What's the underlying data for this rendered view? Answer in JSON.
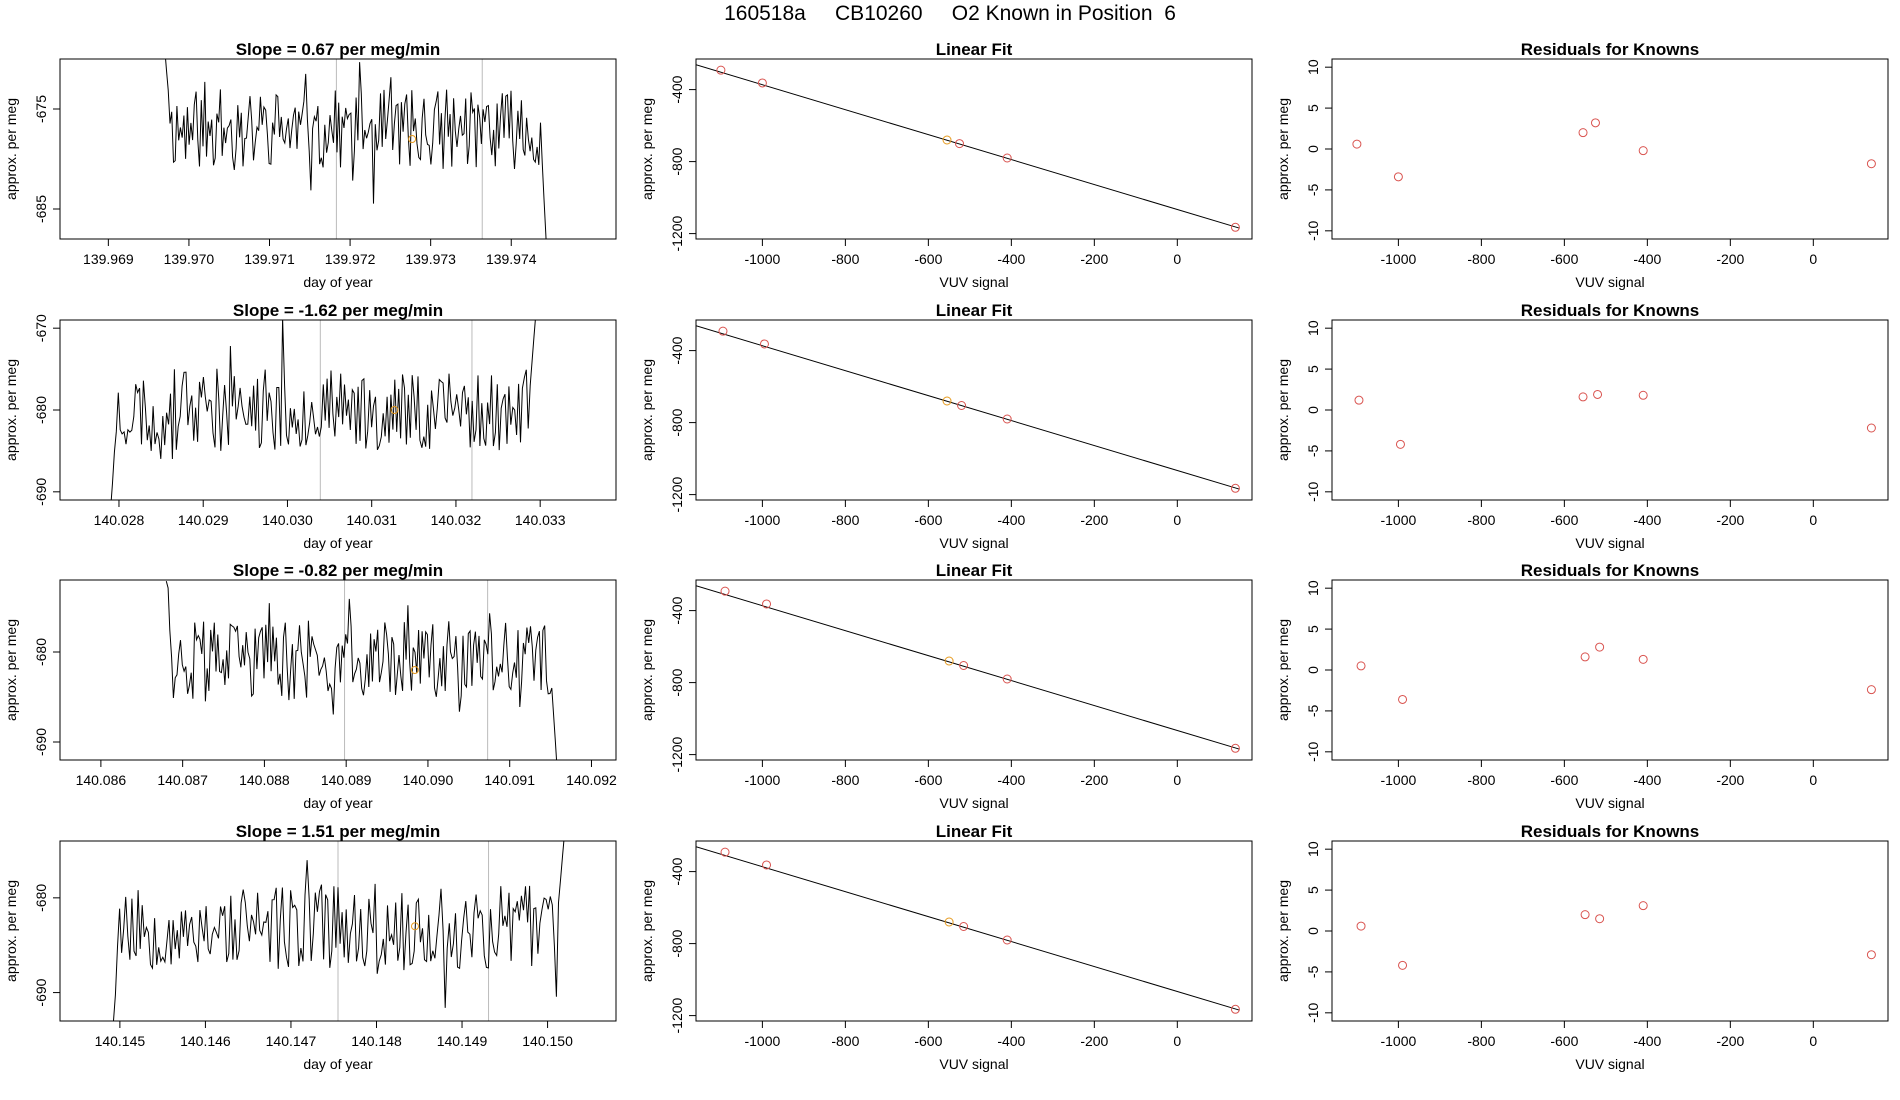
{
  "figure_title": "160518a     CB10260     O2 Known in Position  6",
  "colors": {
    "trace": "#000000",
    "marker_orange": "#e69a1e",
    "marker_red": "#d9534f",
    "vline": "#bbbbbb",
    "fit_line": "#000000"
  },
  "chart_data": [
    {
      "panel": "row1-timeseries",
      "type": "line",
      "title": "Slope =  0.67  per meg/min",
      "xlabel": "day of year",
      "ylabel": "approx. per meg",
      "xlim": [
        139.9684,
        139.9753
      ],
      "ylim": [
        -688,
        -670
      ],
      "xticks": [
        139.969,
        139.97,
        139.971,
        139.972,
        139.973,
        139.974
      ],
      "xtick_labels": [
        "139.969",
        "139.970",
        "139.971",
        "139.972",
        "139.973",
        "139.974"
      ],
      "yticks": [
        -675,
        -685
      ],
      "ytick_labels": [
        "-675",
        "-685"
      ],
      "vlines": [
        139.97183,
        139.97364
      ],
      "marker": {
        "x": 139.97277,
        "y": -678
      },
      "trace_start": 139.9697,
      "trace_end": 139.97445,
      "trace_start_y": -668,
      "trace_end_y": -691,
      "center": -677,
      "amp": 4,
      "seed": 11
    },
    {
      "panel": "row2-timeseries",
      "type": "line",
      "title": "Slope =  -1.62  per meg/min",
      "xlabel": "day of year",
      "ylabel": "approx. per meg",
      "xlim": [
        140.0273,
        140.0339
      ],
      "ylim": [
        -691,
        -669
      ],
      "xticks": [
        140.028,
        140.029,
        140.03,
        140.031,
        140.032,
        140.033
      ],
      "xtick_labels": [
        "140.028",
        "140.029",
        "140.030",
        "140.031",
        "140.032",
        "140.033"
      ],
      "yticks": [
        -670,
        -680,
        -690
      ],
      "ytick_labels": [
        "-670",
        "-680",
        "-690"
      ],
      "vlines": [
        140.03039,
        140.03219
      ],
      "marker": {
        "x": 140.03127,
        "y": -680
      },
      "trace_start": 140.0279,
      "trace_end": 140.03295,
      "trace_start_y": -691,
      "trace_end_y": -668,
      "center": -680,
      "amp": 5,
      "seed": 23
    },
    {
      "panel": "row3-timeseries",
      "type": "line",
      "title": "Slope =  -0.82  per meg/min",
      "xlabel": "day of year",
      "ylabel": "approx. per meg",
      "xlim": [
        140.0855,
        140.0923
      ],
      "ylim": [
        -692,
        -672
      ],
      "xticks": [
        140.086,
        140.087,
        140.088,
        140.089,
        140.09,
        140.091,
        140.092
      ],
      "xtick_labels": [
        "140.086",
        "140.087",
        "140.088",
        "140.089",
        "140.090",
        "140.091",
        "140.092"
      ],
      "yticks": [
        -680,
        -690
      ],
      "ytick_labels": [
        "-680",
        "-690"
      ],
      "vlines": [
        140.08898,
        140.09073
      ],
      "marker": {
        "x": 140.08984,
        "y": -682
      },
      "trace_start": 140.0868,
      "trace_end": 140.09158,
      "trace_start_y": -671,
      "trace_end_y": -693,
      "center": -681,
      "amp": 4.5,
      "seed": 37
    },
    {
      "panel": "row4-timeseries",
      "type": "line",
      "title": "Slope =  1.51  per meg/min",
      "xlabel": "day of year",
      "ylabel": "approx. per meg",
      "xlim": [
        140.1443,
        140.1508
      ],
      "ylim": [
        -693,
        -674
      ],
      "xticks": [
        140.145,
        140.146,
        140.147,
        140.148,
        140.149,
        140.15
      ],
      "xtick_labels": [
        "140.145",
        "140.146",
        "140.147",
        "140.148",
        "140.149",
        "140.150"
      ],
      "yticks": [
        -680,
        -690
      ],
      "ytick_labels": [
        "-680",
        "-690"
      ],
      "vlines": [
        140.14755,
        140.14931
      ],
      "marker": {
        "x": 140.14845,
        "y": -683
      },
      "trace_start": 140.1449,
      "trace_end": 140.1502,
      "trace_start_y": -694,
      "trace_end_y": -673,
      "center": -683,
      "amp": 4.5,
      "seed": 53
    },
    {
      "panel": "row1-linearfit",
      "type": "scatter",
      "title": "Linear Fit",
      "xlabel": "VUV signal",
      "ylabel": "approx. per meg",
      "xlim": [
        -1160,
        180
      ],
      "ylim": [
        -1230,
        -230
      ],
      "xticks": [
        -1000,
        -800,
        -600,
        -400,
        -200,
        0
      ],
      "xtick_labels": [
        "-1000",
        "-800",
        "-600",
        "-400",
        "-200",
        "0"
      ],
      "yticks": [
        -400,
        -800,
        -1200
      ],
      "ytick_labels": [
        "-400",
        "-800",
        "-1200"
      ],
      "fit_line": {
        "x": [
          -1160,
          150
        ],
        "y": [
          -262,
          -1170
        ]
      },
      "points": [
        {
          "x": -1100,
          "y": -292,
          "color": "red"
        },
        {
          "x": -1000,
          "y": -363,
          "color": "red"
        },
        {
          "x": -555,
          "y": -680,
          "color": "orange"
        },
        {
          "x": -525,
          "y": -700,
          "color": "red"
        },
        {
          "x": -410,
          "y": -780,
          "color": "red"
        },
        {
          "x": 140,
          "y": -1165,
          "color": "red"
        }
      ]
    },
    {
      "panel": "row2-linearfit",
      "type": "scatter",
      "title": "Linear Fit",
      "xlabel": "VUV signal",
      "ylabel": "approx. per meg",
      "xlim": [
        -1160,
        180
      ],
      "ylim": [
        -1230,
        -230
      ],
      "xticks": [
        -1000,
        -800,
        -600,
        -400,
        -200,
        0
      ],
      "xtick_labels": [
        "-1000",
        "-800",
        "-600",
        "-400",
        "-200",
        "0"
      ],
      "yticks": [
        -400,
        -800,
        -1200
      ],
      "ytick_labels": [
        "-400",
        "-800",
        "-1200"
      ],
      "fit_line": {
        "x": [
          -1160,
          150
        ],
        "y": [
          -262,
          -1170
        ]
      },
      "points": [
        {
          "x": -1095,
          "y": -292,
          "color": "red"
        },
        {
          "x": -995,
          "y": -363,
          "color": "red"
        },
        {
          "x": -555,
          "y": -680,
          "color": "orange"
        },
        {
          "x": -520,
          "y": -705,
          "color": "red"
        },
        {
          "x": -410,
          "y": -780,
          "color": "red"
        },
        {
          "x": 140,
          "y": -1165,
          "color": "red"
        }
      ]
    },
    {
      "panel": "row3-linearfit",
      "type": "scatter",
      "title": "Linear Fit",
      "xlabel": "VUV signal",
      "ylabel": "approx. per meg",
      "xlim": [
        -1160,
        180
      ],
      "ylim": [
        -1230,
        -230
      ],
      "xticks": [
        -1000,
        -800,
        -600,
        -400,
        -200,
        0
      ],
      "xtick_labels": [
        "-1000",
        "-800",
        "-600",
        "-400",
        "-200",
        "0"
      ],
      "yticks": [
        -400,
        -800,
        -1200
      ],
      "ytick_labels": [
        "-400",
        "-800",
        "-1200"
      ],
      "fit_line": {
        "x": [
          -1160,
          150
        ],
        "y": [
          -262,
          -1170
        ]
      },
      "points": [
        {
          "x": -1090,
          "y": -292,
          "color": "red"
        },
        {
          "x": -990,
          "y": -363,
          "color": "red"
        },
        {
          "x": -550,
          "y": -680,
          "color": "orange"
        },
        {
          "x": -515,
          "y": -705,
          "color": "red"
        },
        {
          "x": -410,
          "y": -780,
          "color": "red"
        },
        {
          "x": 140,
          "y": -1165,
          "color": "red"
        }
      ]
    },
    {
      "panel": "row4-linearfit",
      "type": "scatter",
      "title": "Linear Fit",
      "xlabel": "VUV signal",
      "ylabel": "approx. per meg",
      "xlim": [
        -1160,
        180
      ],
      "ylim": [
        -1230,
        -230
      ],
      "xticks": [
        -1000,
        -800,
        -600,
        -400,
        -200,
        0
      ],
      "xtick_labels": [
        "-1000",
        "-800",
        "-600",
        "-400",
        "-200",
        "0"
      ],
      "yticks": [
        -400,
        -800,
        -1200
      ],
      "ytick_labels": [
        "-400",
        "-800",
        "-1200"
      ],
      "fit_line": {
        "x": [
          -1160,
          150
        ],
        "y": [
          -262,
          -1170
        ]
      },
      "points": [
        {
          "x": -1090,
          "y": -292,
          "color": "red"
        },
        {
          "x": -990,
          "y": -363,
          "color": "red"
        },
        {
          "x": -550,
          "y": -680,
          "color": "orange"
        },
        {
          "x": -515,
          "y": -705,
          "color": "red"
        },
        {
          "x": -410,
          "y": -780,
          "color": "red"
        },
        {
          "x": 140,
          "y": -1165,
          "color": "red"
        }
      ]
    },
    {
      "panel": "row1-residuals",
      "type": "scatter",
      "title": "Residuals for Knowns",
      "xlabel": "VUV signal",
      "ylabel": "approx. per meg",
      "xlim": [
        -1160,
        180
      ],
      "ylim": [
        -11,
        11
      ],
      "xticks": [
        -1000,
        -800,
        -600,
        -400,
        -200,
        0
      ],
      "xtick_labels": [
        "-1000",
        "-800",
        "-600",
        "-400",
        "-200",
        "0"
      ],
      "yticks": [
        10,
        5,
        0,
        -5,
        -10
      ],
      "ytick_labels": [
        "10",
        "5",
        "0",
        "-5",
        "-10"
      ],
      "points": [
        {
          "x": -1100,
          "y": 0.6,
          "color": "red"
        },
        {
          "x": -1000,
          "y": -3.4,
          "color": "red"
        },
        {
          "x": -555,
          "y": 2.0,
          "color": "red"
        },
        {
          "x": -525,
          "y": 3.2,
          "color": "red"
        },
        {
          "x": -410,
          "y": -0.2,
          "color": "red"
        },
        {
          "x": 140,
          "y": -1.8,
          "color": "red"
        }
      ]
    },
    {
      "panel": "row2-residuals",
      "type": "scatter",
      "title": "Residuals for Knowns",
      "xlabel": "VUV signal",
      "ylabel": "approx. per meg",
      "xlim": [
        -1160,
        180
      ],
      "ylim": [
        -11,
        11
      ],
      "xticks": [
        -1000,
        -800,
        -600,
        -400,
        -200,
        0
      ],
      "xtick_labels": [
        "-1000",
        "-800",
        "-600",
        "-400",
        "-200",
        "0"
      ],
      "yticks": [
        10,
        5,
        0,
        -5,
        -10
      ],
      "ytick_labels": [
        "10",
        "5",
        "0",
        "-5",
        "-10"
      ],
      "points": [
        {
          "x": -1095,
          "y": 1.2,
          "color": "red"
        },
        {
          "x": -995,
          "y": -4.2,
          "color": "red"
        },
        {
          "x": -555,
          "y": 1.6,
          "color": "red"
        },
        {
          "x": -520,
          "y": 1.9,
          "color": "red"
        },
        {
          "x": -410,
          "y": 1.8,
          "color": "red"
        },
        {
          "x": 140,
          "y": -2.2,
          "color": "red"
        }
      ]
    },
    {
      "panel": "row3-residuals",
      "type": "scatter",
      "title": "Residuals for Knowns",
      "xlabel": "VUV signal",
      "ylabel": "approx. per meg",
      "xlim": [
        -1160,
        180
      ],
      "ylim": [
        -11,
        11
      ],
      "xticks": [
        -1000,
        -800,
        -600,
        -400,
        -200,
        0
      ],
      "xtick_labels": [
        "-1000",
        "-800",
        "-600",
        "-400",
        "-200",
        "0"
      ],
      "yticks": [
        10,
        5,
        0,
        -5,
        -10
      ],
      "ytick_labels": [
        "10",
        "5",
        "0",
        "-5",
        "-10"
      ],
      "points": [
        {
          "x": -1090,
          "y": 0.5,
          "color": "red"
        },
        {
          "x": -990,
          "y": -3.6,
          "color": "red"
        },
        {
          "x": -550,
          "y": 1.6,
          "color": "red"
        },
        {
          "x": -515,
          "y": 2.8,
          "color": "red"
        },
        {
          "x": -410,
          "y": 1.3,
          "color": "red"
        },
        {
          "x": 140,
          "y": -2.4,
          "color": "red"
        }
      ]
    },
    {
      "panel": "row4-residuals",
      "type": "scatter",
      "title": "Residuals for Knowns",
      "xlabel": "VUV signal",
      "ylabel": "approx. per meg",
      "xlim": [
        -1160,
        180
      ],
      "ylim": [
        -11,
        11
      ],
      "xticks": [
        -1000,
        -800,
        -600,
        -400,
        -200,
        0
      ],
      "xtick_labels": [
        "-1000",
        "-800",
        "-600",
        "-400",
        "-200",
        "0"
      ],
      "yticks": [
        10,
        5,
        0,
        -5,
        -10
      ],
      "ytick_labels": [
        "10",
        "5",
        "0",
        "-5",
        "-10"
      ],
      "points": [
        {
          "x": -1090,
          "y": 0.6,
          "color": "red"
        },
        {
          "x": -990,
          "y": -4.2,
          "color": "red"
        },
        {
          "x": -550,
          "y": 2.0,
          "color": "red"
        },
        {
          "x": -515,
          "y": 1.5,
          "color": "red"
        },
        {
          "x": -410,
          "y": 3.1,
          "color": "red"
        },
        {
          "x": 140,
          "y": -2.9,
          "color": "red"
        }
      ]
    }
  ]
}
